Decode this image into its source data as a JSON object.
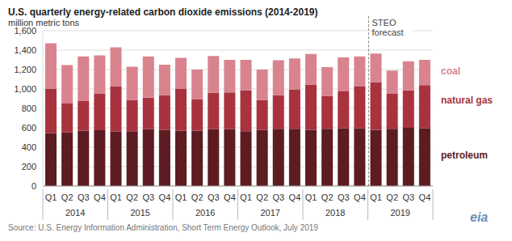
{
  "chart_data": {
    "type": "bar",
    "title": "U.S. quarterly energy-related carbon dioxide emissions (2014-2019)",
    "y_label": "million metric tons",
    "source": "Source: U.S. Energy Information Administration, Short Term Energy Outlook, July 2019",
    "logo": "eia",
    "stacked": true,
    "grid": true,
    "categories": [
      "Q1",
      "Q2",
      "Q3",
      "Q4",
      "Q1",
      "Q2",
      "Q3",
      "Q4",
      "Q1",
      "Q2",
      "Q3",
      "Q4",
      "Q1",
      "Q2",
      "Q3",
      "Q4",
      "Q1",
      "Q2",
      "Q3",
      "Q4",
      "Q1",
      "Q2",
      "Q3",
      "Q4"
    ],
    "years": [
      "2014",
      "2015",
      "2016",
      "2017",
      "2018",
      "2019"
    ],
    "annotation": {
      "text": "STEO forecast",
      "start": "2019"
    },
    "ylim": [
      0,
      1600
    ],
    "yticks": [
      0,
      {
        "value": 200,
        "label": "200"
      },
      {
        "value": 400,
        "label": "400"
      },
      {
        "value": 600,
        "label": "600"
      },
      {
        "value": 800,
        "label": "800"
      },
      {
        "value": 1000,
        "label": "1,000"
      },
      {
        "value": 1200,
        "label": "1,200"
      },
      {
        "value": 1400,
        "label": "1,400"
      },
      {
        "value": 1600,
        "label": "1,600"
      }
    ],
    "series": [
      {
        "name": "petroleum",
        "color": "#5c1c22",
        "values": [
          545,
          555,
          570,
          575,
          560,
          565,
          585,
          580,
          570,
          570,
          585,
          585,
          565,
          580,
          590,
          590,
          580,
          590,
          595,
          595,
          580,
          590,
          600,
          595
        ]
      },
      {
        "name": "natural gas",
        "color": "#a8333f",
        "values": [
          460,
          295,
          305,
          380,
          470,
          320,
          325,
          355,
          430,
          325,
          375,
          380,
          420,
          305,
          345,
          405,
          465,
          340,
          380,
          430,
          490,
          360,
          385,
          445
        ]
      },
      {
        "name": "coal",
        "color": "#d9838e",
        "values": [
          465,
          395,
          460,
          390,
          400,
          345,
          425,
          315,
          320,
          305,
          380,
          335,
          315,
          315,
          360,
          320,
          315,
          295,
          350,
          310,
          295,
          240,
          300,
          260
        ]
      }
    ]
  }
}
